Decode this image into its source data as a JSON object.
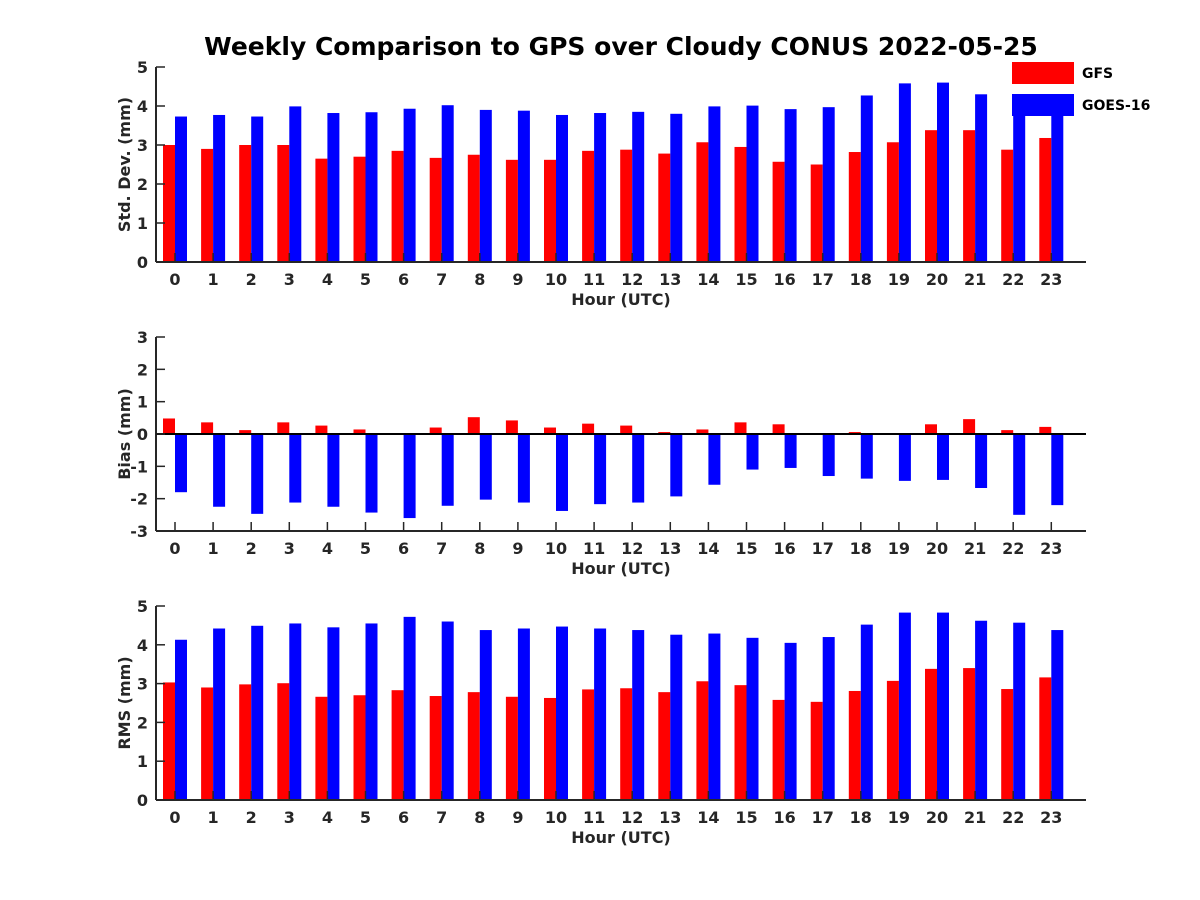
{
  "title": "Weekly Comparison to GPS over Cloudy CONUS 2022-05-25",
  "legend": {
    "placement": "top-right",
    "entries": [
      {
        "name": "GFS",
        "color": "#ff0000"
      },
      {
        "name": "GOES-16",
        "color": "#0000ff"
      }
    ]
  },
  "chart_data": [
    {
      "type": "bar",
      "ylabel": "Std. Dev. (mm)",
      "xlabel": "Hour (UTC)",
      "ylim": [
        0,
        5
      ],
      "yticks": [
        0,
        1,
        2,
        3,
        4,
        5
      ],
      "categories": [
        "0",
        "1",
        "2",
        "3",
        "4",
        "5",
        "6",
        "7",
        "8",
        "9",
        "10",
        "11",
        "12",
        "13",
        "14",
        "15",
        "16",
        "17",
        "18",
        "19",
        "20",
        "21",
        "22",
        "23"
      ],
      "series": [
        {
          "name": "GFS",
          "color": "#ff0000",
          "values": [
            3.0,
            2.9,
            3.0,
            3.0,
            2.65,
            2.7,
            2.85,
            2.67,
            2.75,
            2.62,
            2.62,
            2.85,
            2.88,
            2.78,
            3.07,
            2.95,
            2.57,
            2.5,
            2.82,
            3.07,
            3.38,
            3.38,
            2.88,
            3.18
          ]
        },
        {
          "name": "GOES-16",
          "color": "#0000ff",
          "values": [
            3.73,
            3.77,
            3.73,
            3.99,
            3.82,
            3.84,
            3.93,
            4.02,
            3.9,
            3.88,
            3.77,
            3.82,
            3.85,
            3.8,
            3.99,
            4.01,
            3.92,
            3.97,
            4.27,
            4.58,
            4.6,
            4.3,
            3.8,
            3.9
          ]
        }
      ]
    },
    {
      "type": "bar",
      "ylabel": "Bias (mm)",
      "xlabel": "Hour (UTC)",
      "ylim": [
        -3,
        3
      ],
      "yticks": [
        -3,
        -2,
        -1,
        0,
        1,
        2,
        3
      ],
      "categories": [
        "0",
        "1",
        "2",
        "3",
        "4",
        "5",
        "6",
        "7",
        "8",
        "9",
        "10",
        "11",
        "12",
        "13",
        "14",
        "15",
        "16",
        "17",
        "18",
        "19",
        "20",
        "21",
        "22",
        "23"
      ],
      "series": [
        {
          "name": "GFS",
          "color": "#ff0000",
          "values": [
            0.48,
            0.36,
            0.12,
            0.36,
            0.26,
            0.14,
            0.0,
            0.2,
            0.52,
            0.42,
            0.2,
            0.32,
            0.26,
            0.06,
            0.14,
            0.36,
            0.3,
            0.0,
            0.06,
            0.02,
            0.3,
            0.46,
            0.12,
            0.22
          ]
        },
        {
          "name": "GOES-16",
          "color": "#0000ff",
          "values": [
            -1.8,
            -2.25,
            -2.47,
            -2.12,
            -2.25,
            -2.43,
            -2.6,
            -2.22,
            -2.03,
            -2.12,
            -2.38,
            -2.17,
            -2.12,
            -1.93,
            -1.57,
            -1.1,
            -1.05,
            -1.3,
            -1.38,
            -1.45,
            -1.42,
            -1.67,
            -2.5,
            -2.2
          ]
        }
      ]
    },
    {
      "type": "bar",
      "ylabel": "RMS (mm)",
      "xlabel": "Hour (UTC)",
      "ylim": [
        0,
        5
      ],
      "yticks": [
        0,
        1,
        2,
        3,
        4,
        5
      ],
      "categories": [
        "0",
        "1",
        "2",
        "3",
        "4",
        "5",
        "6",
        "7",
        "8",
        "9",
        "10",
        "11",
        "12",
        "13",
        "14",
        "15",
        "16",
        "17",
        "18",
        "19",
        "20",
        "21",
        "22",
        "23"
      ],
      "series": [
        {
          "name": "GFS",
          "color": "#ff0000",
          "values": [
            3.03,
            2.9,
            2.98,
            3.01,
            2.66,
            2.7,
            2.83,
            2.68,
            2.78,
            2.66,
            2.63,
            2.85,
            2.88,
            2.78,
            3.06,
            2.96,
            2.58,
            2.53,
            2.81,
            3.07,
            3.38,
            3.4,
            2.86,
            3.16
          ]
        },
        {
          "name": "GOES-16",
          "color": "#0000ff",
          "values": [
            4.13,
            4.42,
            4.49,
            4.55,
            4.45,
            4.55,
            4.72,
            4.6,
            4.38,
            4.42,
            4.47,
            4.42,
            4.38,
            4.26,
            4.29,
            4.18,
            4.05,
            4.2,
            4.52,
            4.83,
            4.83,
            4.62,
            4.57,
            4.38
          ]
        }
      ]
    }
  ]
}
